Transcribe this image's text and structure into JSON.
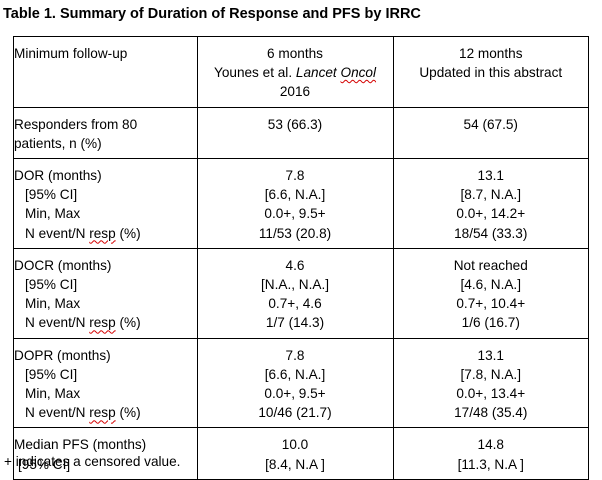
{
  "title": "Table 1. Summary of Duration of Response and PFS by IRRC",
  "header": {
    "label": "Minimum follow-up",
    "col1": {
      "line1": "6 months",
      "author": "Younes et al.",
      "journal_a": "Lancet",
      "journal_b": "Oncol",
      "year": "2016"
    },
    "col2": {
      "line1": "12 months",
      "line2": "Updated in this abstract"
    }
  },
  "responders": {
    "label_line1": "Responders from 80",
    "label_line2": "patients, n (%)",
    "col1": "53 (66.3)",
    "col2": "54 (67.5)"
  },
  "groups": [
    {
      "rows": [
        {
          "label": "DOR (months)",
          "col1": "7.8",
          "col2": "13.1"
        },
        {
          "label": "[95% CI]",
          "col1": "[6.6, N.A.]",
          "col2": "[8.7, N.A.]"
        },
        {
          "label": "Min, Max",
          "col1": "0.0+, 9.5+",
          "col2": "0.0+, 14.2+"
        },
        {
          "label_a": "N event/N ",
          "label_b": "resp",
          "label_c": " (%)",
          "col1": "11/53 (20.8)",
          "col2": "18/54 (33.3)"
        }
      ]
    },
    {
      "rows": [
        {
          "label": "DOCR (months)",
          "col1": "4.6",
          "col2": "Not reached"
        },
        {
          "label": "[95% CI]",
          "col1": "[N.A., N.A.]",
          "col2": "[4.6, N.A.]"
        },
        {
          "label": "Min, Max",
          "col1": "0.7+, 4.6",
          "col2": "0.7+, 10.4+"
        },
        {
          "label_a": "N event/N ",
          "label_b": "resp",
          "label_c": " (%)",
          "col1": "1/7 (14.3)",
          "col2": "1/6 (16.7)"
        }
      ]
    },
    {
      "rows": [
        {
          "label": "DOPR (months)",
          "col1": "7.8",
          "col2": "13.1"
        },
        {
          "label": "[95% CI]",
          "col1": "[6.6, N.A.]",
          "col2": "[7.8, N.A.]"
        },
        {
          "label": "Min, Max",
          "col1": "0.0+, 9.5+",
          "col2": "0.0+, 13.4+"
        },
        {
          "label_a": "N event/N ",
          "label_b": "resp",
          "label_c": " (%)",
          "col1": "10/46 (21.7)",
          "col2": "17/48 (35.4)"
        }
      ]
    },
    {
      "rows": [
        {
          "label": "Median PFS (months)",
          "col1": "10.0",
          "col2": "14.8"
        },
        {
          "label": "[95% CI]",
          "col1": "[8.4, N.A ]",
          "col2": "[11.3, N.A ]"
        }
      ]
    }
  ],
  "footnote": "+ indicates a censored value."
}
